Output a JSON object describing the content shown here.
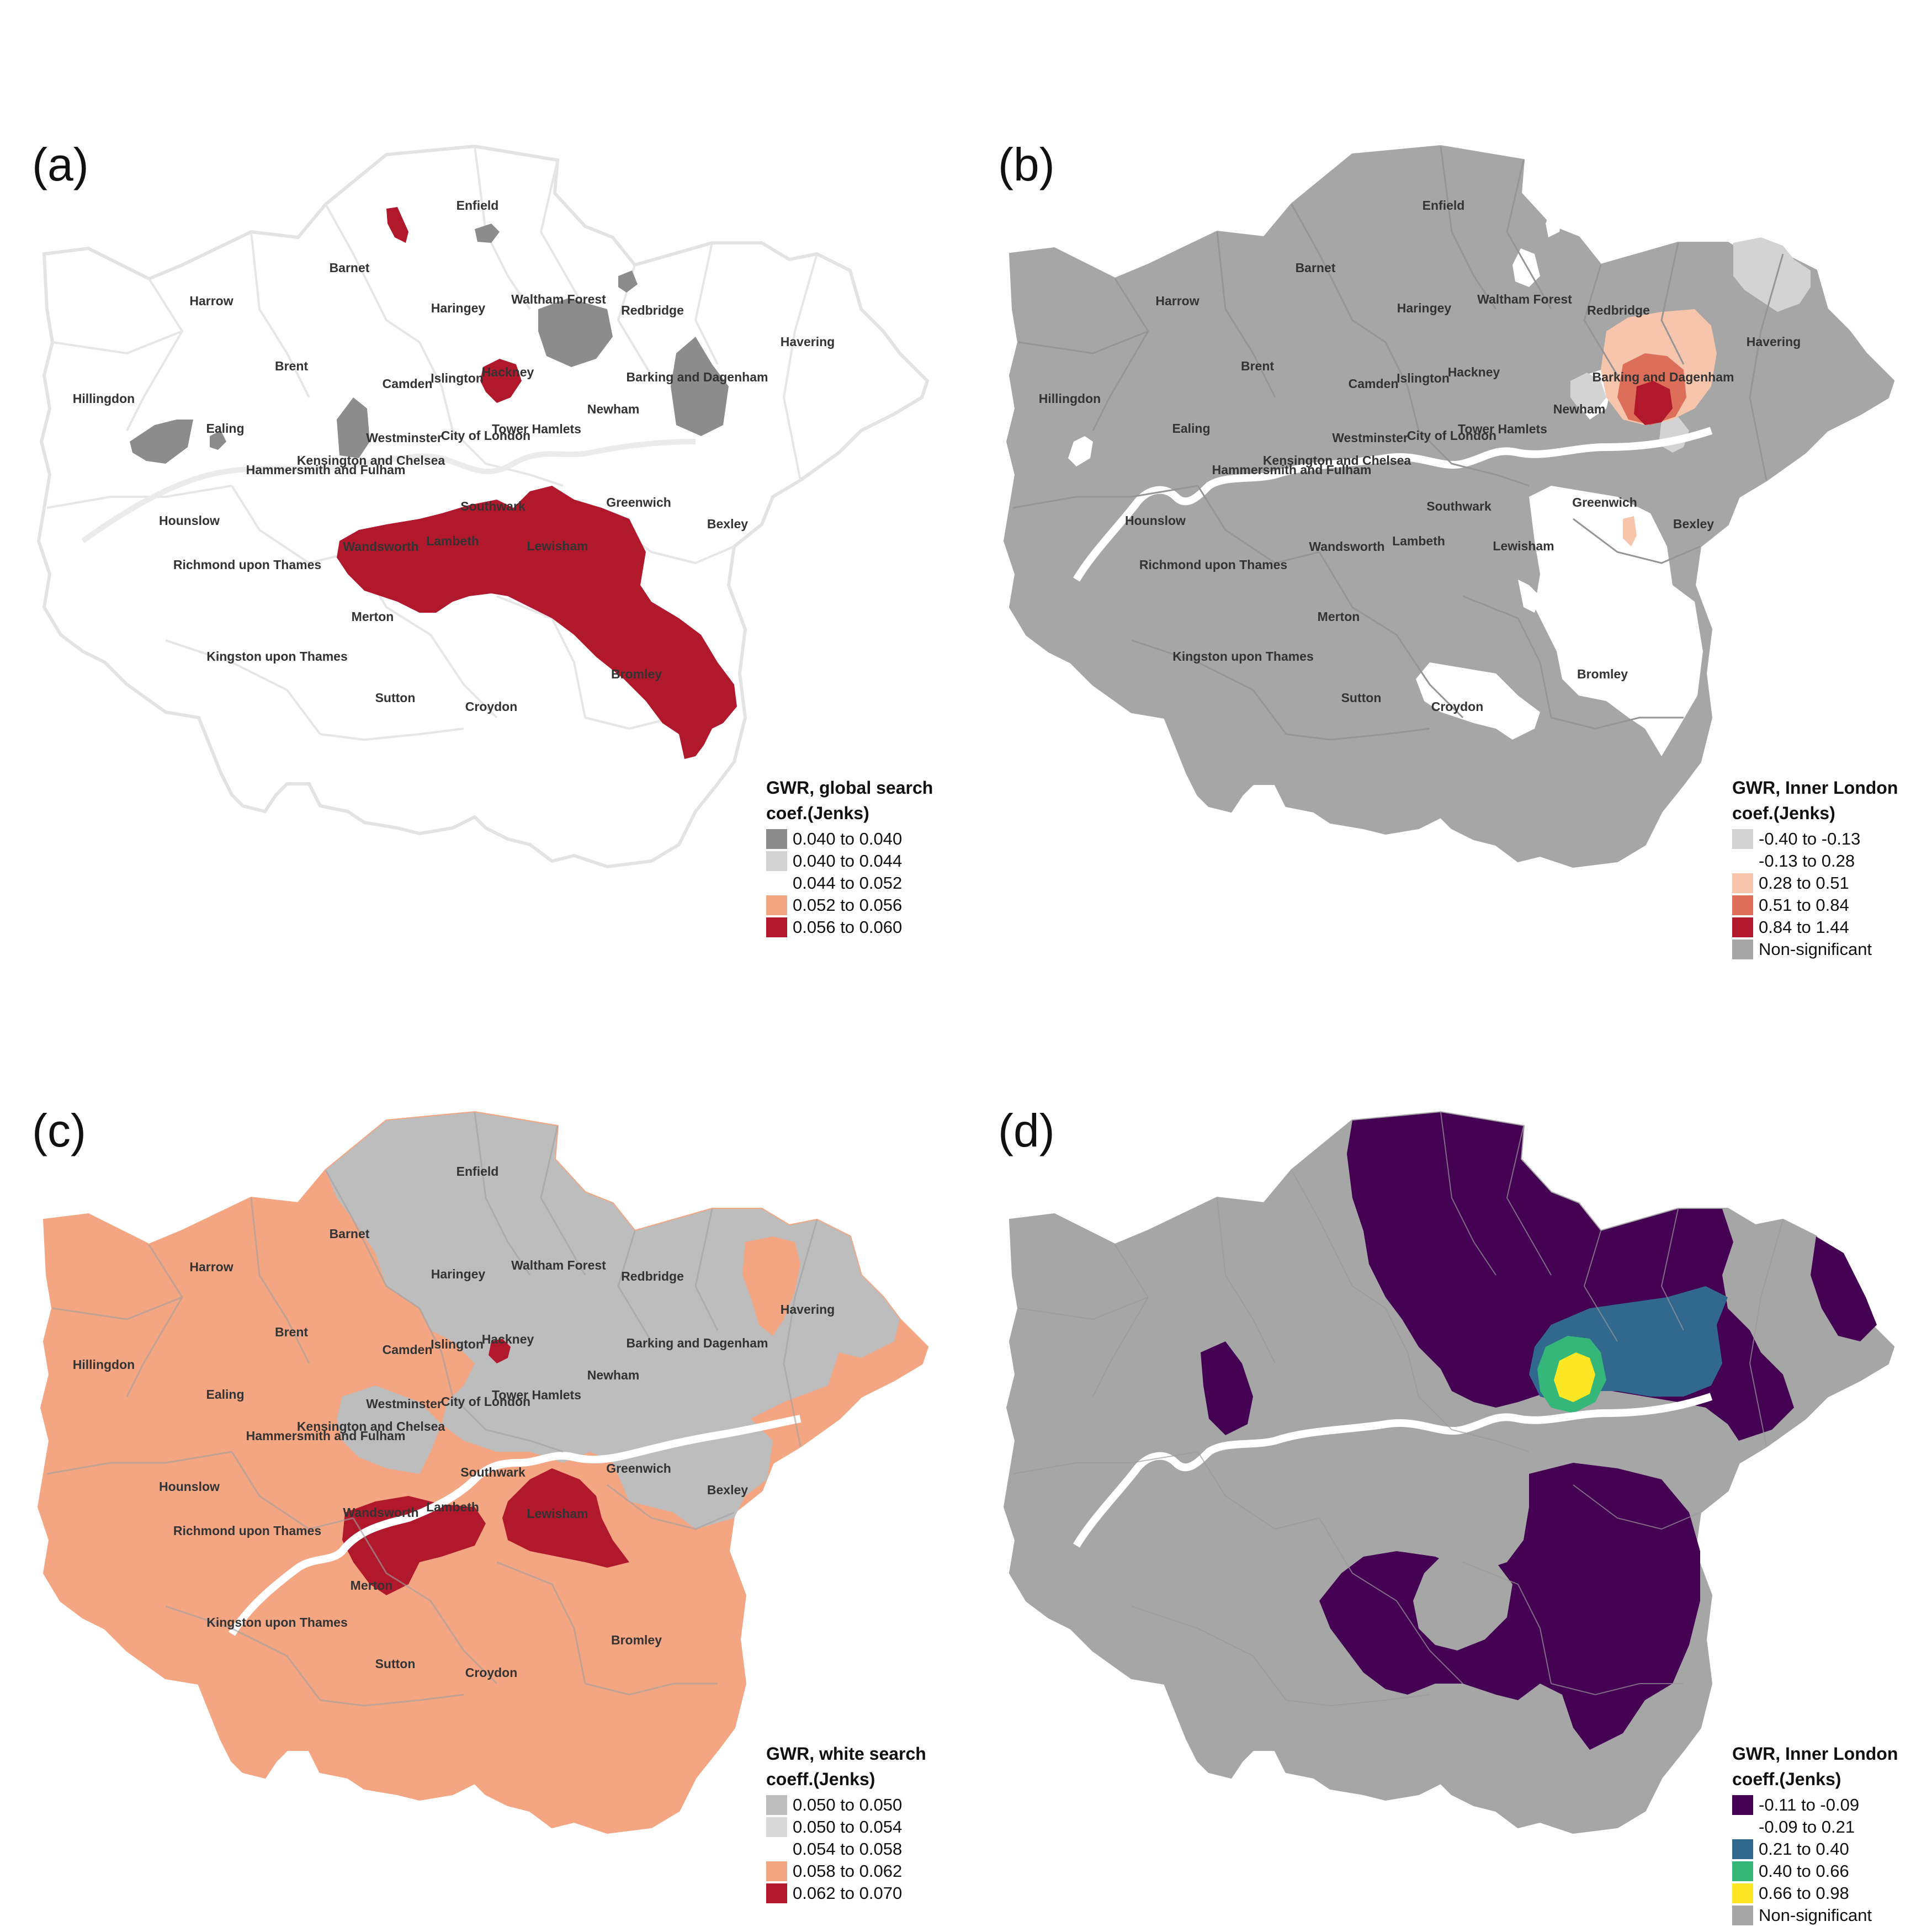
{
  "panels": [
    {
      "label": "(a)",
      "legend": {
        "title_line1": "GWR, global search",
        "title_line2": "coef.(Jenks)",
        "items": [
          {
            "text": "0.040 to 0.040",
            "color": "#8c8c8c"
          },
          {
            "text": "0.040 to 0.044",
            "color": "#d3d3d3"
          },
          {
            "text": "0.044 to 0.052",
            "color": "#ffffff"
          },
          {
            "text": "0.052 to 0.056",
            "color": "#f4a582"
          },
          {
            "text": "0.056 to 0.060",
            "color": "#b2182b"
          }
        ]
      }
    },
    {
      "label": "(b)",
      "legend": {
        "title_line1": "GWR, Inner London",
        "title_line2": "coef.(Jenks)",
        "items": [
          {
            "text": "-0.40 to -0.13",
            "color": "#d3d3d3"
          },
          {
            "text": "-0.13 to 0.28",
            "color": "#ffffff"
          },
          {
            "text": "0.28 to 0.51",
            "color": "#f7c4ac"
          },
          {
            "text": "0.51 to 0.84",
            "color": "#dd6f5a"
          },
          {
            "text": "0.84 to 1.44",
            "color": "#b2182b"
          },
          {
            "text": "Non-significant",
            "color": "#a6a6a6"
          }
        ]
      }
    },
    {
      "label": "(c)",
      "legend": {
        "title_line1": "GWR, white search",
        "title_line2": "coeff.(Jenks)",
        "items": [
          {
            "text": "0.050 to 0.050",
            "color": "#bdbdbd"
          },
          {
            "text": "0.050 to 0.054",
            "color": "#d9d9d9"
          },
          {
            "text": "0.054 to 0.058",
            "color": "#ffffff"
          },
          {
            "text": "0.058 to 0.062",
            "color": "#f4a582"
          },
          {
            "text": "0.062 to 0.070",
            "color": "#b2182b"
          }
        ]
      }
    },
    {
      "label": "(d)",
      "legend": {
        "title_line1": "GWR, Inner London",
        "title_line2": "coeff.(Jenks)",
        "items": [
          {
            "text": "-0.11 to -0.09",
            "color": "#440154"
          },
          {
            "text": "-0.09 to 0.21",
            "color": "#ffffff"
          },
          {
            "text": "0.21 to 0.40",
            "color": "#31688e"
          },
          {
            "text": "0.40 to 0.66",
            "color": "#35b779"
          },
          {
            "text": "0.66 to 0.98",
            "color": "#fde725"
          },
          {
            "text": "Non-significant",
            "color": "#a6a6a6"
          }
        ]
      }
    }
  ],
  "boroughs": {
    "enfield": "Enfield",
    "barnet": "Barnet",
    "harrow": "Harrow",
    "haringey": "Haringey",
    "waltham_forest": "Waltham Forest",
    "redbridge": "Redbridge",
    "havering": "Havering",
    "brent": "Brent",
    "islington": "Islington",
    "hackney": "Hackney",
    "camden": "Camden",
    "barking": "Barking and Dagenham",
    "hillingdon": "Hillingdon",
    "newham": "Newham",
    "ealing": "Ealing",
    "westminster": "Westminster",
    "city": "City of London",
    "tower_hamlets": "Tower Hamlets",
    "kensington": "Kensington and Chelsea",
    "hammersmith": "Hammersmith and Fulham",
    "southwark": "Southwark",
    "greenwich": "Greenwich",
    "hounslow": "Hounslow",
    "bexley": "Bexley",
    "wandsworth": "Wandsworth",
    "lambeth": "Lambeth",
    "lewisham": "Lewisham",
    "richmond": "Richmond upon Thames",
    "merton": "Merton",
    "kingston": "Kingston upon Thames",
    "bromley": "Bromley",
    "sutton": "Sutton",
    "croydon": "Croydon"
  }
}
